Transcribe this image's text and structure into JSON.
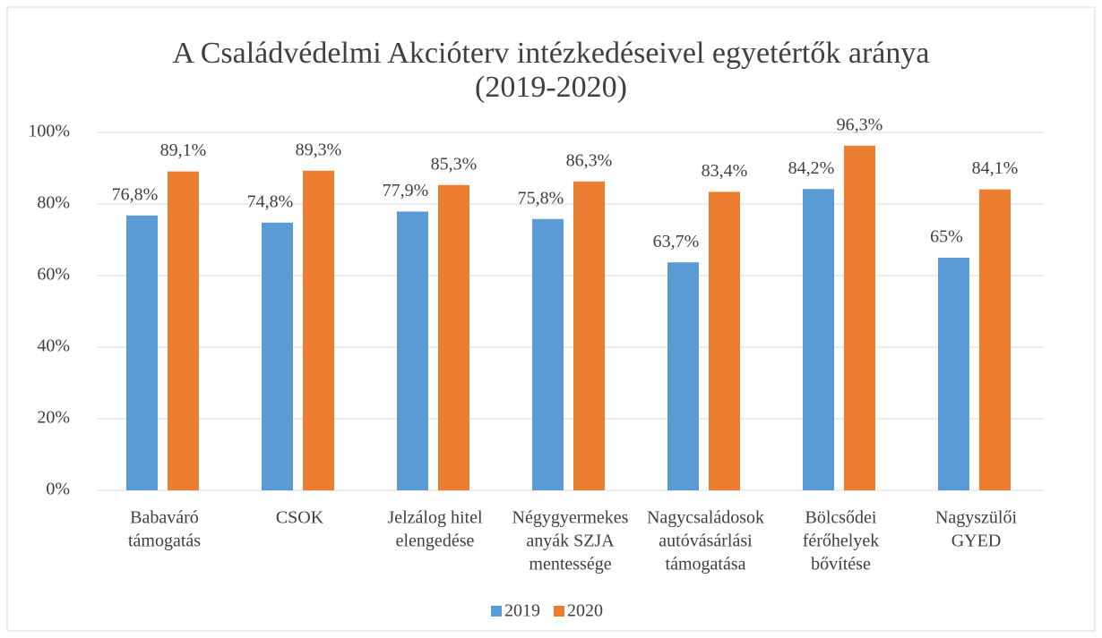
{
  "chart_data": {
    "type": "bar",
    "title": [
      "A Családvédelmi Akcióterv intézkedéseivel egyetértők aránya",
      "(2019-2020)"
    ],
    "categories": [
      [
        "Babaváró",
        "támogatás"
      ],
      [
        "CSOK"
      ],
      [
        "Jelzálog hitel",
        "elengedése"
      ],
      [
        "Négygyermekes",
        "anyák SZJA",
        "mentessége"
      ],
      [
        "Nagycsaládosok",
        "autóvásárlási",
        "támogatása"
      ],
      [
        "Bölcsődei",
        "férőhelyek",
        "bővítése"
      ],
      [
        "Nagyszülői",
        "GYED"
      ]
    ],
    "series": [
      {
        "name": "2019",
        "color": "#5b9bd5",
        "values": [
          76.8,
          74.8,
          77.9,
          75.8,
          63.7,
          84.2,
          65
        ],
        "value_labels": [
          "76,8%",
          "74,8%",
          "77,9%",
          "75,8%",
          "63,7%",
          "84,2%",
          "65%"
        ]
      },
      {
        "name": "2020",
        "color": "#ed7d31",
        "values": [
          89.1,
          89.3,
          85.3,
          86.3,
          83.4,
          96.3,
          84.1
        ],
        "value_labels": [
          "89,1%",
          "89,3%",
          "85,3%",
          "86,3%",
          "83,4%",
          "96,3%",
          "84,1%"
        ]
      }
    ],
    "ylim": [
      0,
      100
    ],
    "yticks": [
      {
        "value": 0,
        "label": "0%"
      },
      {
        "value": 20,
        "label": "20%"
      },
      {
        "value": 40,
        "label": "40%"
      },
      {
        "value": 60,
        "label": "60%"
      },
      {
        "value": 80,
        "label": "80%"
      },
      {
        "value": 100,
        "label": "100%"
      }
    ],
    "grid": true,
    "legend": "bottom"
  }
}
